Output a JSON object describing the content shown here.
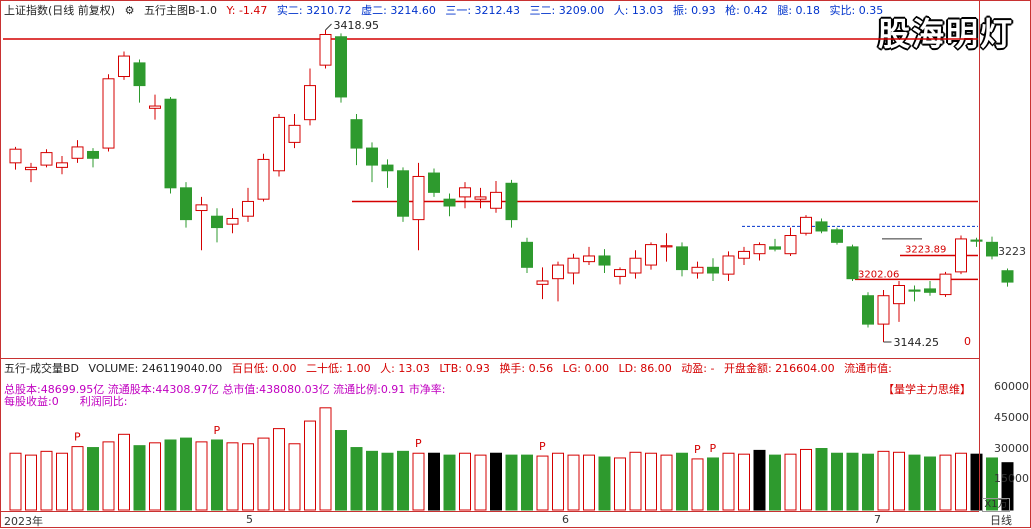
{
  "header": {
    "index_name": "上证指数(日线 前复权)",
    "indicator_name": "五行主图B-1.0",
    "y_value": "Y: -1.47",
    "shi_er": "实二: 3210.72",
    "xu_er": "虚二: 3214.60",
    "san_yi": "三一: 3212.43",
    "san_er": "三二: 3209.00",
    "ren": "人: 13.03",
    "zhen": "振: 0.93",
    "qiang": "枪: 0.42",
    "tui": "腿: 0.18",
    "shibi": "实比: 0.35"
  },
  "logo": "股海明灯",
  "price_axis": {
    "label": "3223"
  },
  "annotations": {
    "high": "3418.95",
    "low": "3144.25",
    "r1": "3223.89",
    "r2": "3202.06",
    "zero": "0"
  },
  "volume_header": {
    "name": "五行-成交量BD",
    "volume": "VOLUME: 246119040.00",
    "bai_ri_di": "百日低: 0.00",
    "ershi_di": "二十低: 1.00",
    "ren": "人: 13.03",
    "ltb": "LTB: 0.93",
    "huanshou": "换手: 0.56",
    "lg": "LG: 0.00",
    "ld": "LD: 86.00",
    "dongying": "动盈: -",
    "kaipan": "开盘金额: 216604.00",
    "liutong": "流通市值:"
  },
  "fin_row1": {
    "zong": "总股本:48699.95亿",
    "liutong": "流通股本:44308.97亿",
    "zongshizhi": "总市值:438080.03亿",
    "liutongbili": "流通比例:0.91",
    "shijinglv": "市净率:"
  },
  "fin_row2": {
    "mgsy": "每股收益:0",
    "lrtb": "利润同比:"
  },
  "tag_right": "【量学主力思维】",
  "volume_axis": [
    "60000",
    "45000",
    "30000",
    "15000"
  ],
  "volume_unit": "X1万",
  "x_axis": {
    "year": "2023年",
    "m5": "5",
    "m6": "6",
    "m7": "7"
  },
  "period": "日线",
  "p_marker": "P",
  "chart_data": {
    "type": "candlestick",
    "yrange": [
      3144.25,
      3418.95
    ],
    "candles": [
      {
        "o": 3302,
        "c": 3314,
        "h": 3316,
        "l": 3296
      },
      {
        "o": 3296,
        "c": 3298,
        "h": 3302,
        "l": 3285
      },
      {
        "o": 3300,
        "c": 3311,
        "h": 3314,
        "l": 3298
      },
      {
        "o": 3298,
        "c": 3302,
        "h": 3308,
        "l": 3292
      },
      {
        "o": 3306,
        "c": 3316,
        "h": 3322,
        "l": 3302
      },
      {
        "o": 3312,
        "c": 3306,
        "h": 3315,
        "l": 3298
      },
      {
        "o": 3315,
        "c": 3376,
        "h": 3380,
        "l": 3312
      },
      {
        "o": 3378,
        "c": 3396,
        "h": 3400,
        "l": 3375
      },
      {
        "o": 3390,
        "c": 3370,
        "h": 3393,
        "l": 3355
      },
      {
        "o": 3350,
        "c": 3352,
        "h": 3362,
        "l": 3340
      },
      {
        "o": 3358,
        "c": 3280,
        "h": 3360,
        "l": 3275
      },
      {
        "o": 3280,
        "c": 3252,
        "h": 3285,
        "l": 3245
      },
      {
        "o": 3260,
        "c": 3265,
        "h": 3272,
        "l": 3225
      },
      {
        "o": 3255,
        "c": 3245,
        "h": 3262,
        "l": 3232
      },
      {
        "o": 3248,
        "c": 3253,
        "h": 3262,
        "l": 3240
      },
      {
        "o": 3255,
        "c": 3268,
        "h": 3280,
        "l": 3250
      },
      {
        "o": 3270,
        "c": 3305,
        "h": 3310,
        "l": 3268
      },
      {
        "o": 3295,
        "c": 3342,
        "h": 3345,
        "l": 3290
      },
      {
        "o": 3320,
        "c": 3335,
        "h": 3345,
        "l": 3315
      },
      {
        "o": 3340,
        "c": 3370,
        "h": 3385,
        "l": 3335
      },
      {
        "o": 3388,
        "c": 3415,
        "h": 3418.95,
        "l": 3385
      },
      {
        "o": 3413,
        "c": 3360,
        "h": 3416,
        "l": 3355
      },
      {
        "o": 3340,
        "c": 3315,
        "h": 3345,
        "l": 3300
      },
      {
        "o": 3315,
        "c": 3300,
        "h": 3320,
        "l": 3285
      },
      {
        "o": 3300,
        "c": 3295,
        "h": 3305,
        "l": 3280
      },
      {
        "o": 3295,
        "c": 3255,
        "h": 3298,
        "l": 3250
      },
      {
        "o": 3252,
        "c": 3290,
        "h": 3302,
        "l": 3225
      },
      {
        "o": 3293,
        "c": 3276,
        "h": 3297,
        "l": 3272
      },
      {
        "o": 3270,
        "c": 3264,
        "h": 3275,
        "l": 3255
      },
      {
        "o": 3272,
        "c": 3280,
        "h": 3285,
        "l": 3262
      },
      {
        "o": 3270,
        "c": 3272,
        "h": 3280,
        "l": 3262
      },
      {
        "o": 3262,
        "c": 3276,
        "h": 3286,
        "l": 3258
      },
      {
        "o": 3284,
        "c": 3252,
        "h": 3287,
        "l": 3245
      },
      {
        "o": 3232,
        "c": 3210,
        "h": 3236,
        "l": 3205
      },
      {
        "o": 3195,
        "c": 3198,
        "h": 3210,
        "l": 3182
      },
      {
        "o": 3200,
        "c": 3212,
        "h": 3215,
        "l": 3180
      },
      {
        "o": 3205,
        "c": 3218,
        "h": 3222,
        "l": 3195
      },
      {
        "o": 3215,
        "c": 3220,
        "h": 3228,
        "l": 3212
      },
      {
        "o": 3220,
        "c": 3212,
        "h": 3226,
        "l": 3205
      },
      {
        "o": 3202,
        "c": 3208,
        "h": 3210,
        "l": 3195
      },
      {
        "o": 3205,
        "c": 3218,
        "h": 3225,
        "l": 3200
      },
      {
        "o": 3212,
        "c": 3230,
        "h": 3232,
        "l": 3208
      },
      {
        "o": 3228,
        "c": 3229,
        "h": 3240,
        "l": 3215
      },
      {
        "o": 3228,
        "c": 3208,
        "h": 3232,
        "l": 3202
      },
      {
        "o": 3205,
        "c": 3210,
        "h": 3215,
        "l": 3200
      },
      {
        "o": 3210,
        "c": 3205,
        "h": 3218,
        "l": 3198
      },
      {
        "o": 3204,
        "c": 3220,
        "h": 3224,
        "l": 3198
      },
      {
        "o": 3218,
        "c": 3224,
        "h": 3228,
        "l": 3212
      },
      {
        "o": 3222,
        "c": 3230,
        "h": 3232,
        "l": 3216
      },
      {
        "o": 3228,
        "c": 3226,
        "h": 3235,
        "l": 3224
      },
      {
        "o": 3222,
        "c": 3238,
        "h": 3245,
        "l": 3220
      },
      {
        "o": 3240,
        "c": 3254,
        "h": 3256,
        "l": 3238
      },
      {
        "o": 3250,
        "c": 3242,
        "h": 3253,
        "l": 3240
      },
      {
        "o": 3243,
        "c": 3232,
        "h": 3245,
        "l": 3230
      },
      {
        "o": 3228,
        "c": 3200,
        "h": 3230,
        "l": 3198
      },
      {
        "o": 3185,
        "c": 3160,
        "h": 3188,
        "l": 3157
      },
      {
        "o": 3160,
        "c": 3185,
        "h": 3190,
        "l": 3144.25
      },
      {
        "o": 3178,
        "c": 3194,
        "h": 3198,
        "l": 3162
      },
      {
        "o": 3190,
        "c": 3189,
        "h": 3194,
        "l": 3180
      },
      {
        "o": 3191,
        "c": 3188,
        "h": 3198,
        "l": 3185
      },
      {
        "o": 3186,
        "c": 3204,
        "h": 3206,
        "l": 3184
      },
      {
        "o": 3206,
        "c": 3235,
        "h": 3238,
        "l": 3204
      },
      {
        "o": 3234,
        "c": 3233,
        "h": 3236,
        "l": 3228
      },
      {
        "o": 3232,
        "c": 3220,
        "h": 3237,
        "l": 3217
      },
      {
        "o": 3207,
        "c": 3197,
        "h": 3209,
        "l": 3193
      }
    ],
    "volumes": [
      300,
      290,
      310,
      300,
      335,
      330,
      360,
      400,
      340,
      355,
      370,
      380,
      360,
      370,
      355,
      350,
      380,
      430,
      350,
      470,
      540,
      420,
      330,
      310,
      300,
      310,
      300,
      300,
      290,
      300,
      290,
      300,
      290,
      290,
      285,
      300,
      290,
      290,
      280,
      275,
      305,
      300,
      290,
      300,
      270,
      275,
      300,
      295,
      315,
      290,
      295,
      320,
      325,
      300,
      300,
      295,
      310,
      305,
      290,
      280,
      290,
      300,
      295,
      275,
      250
    ],
    "vol_black": [
      27,
      31,
      48,
      62,
      64
    ],
    "p_markers": [
      4,
      13,
      26,
      34,
      44,
      45
    ]
  },
  "colors": {
    "up": "#d40000",
    "down": "#2e9a2e",
    "grid": "#c83232",
    "black": "#000000"
  }
}
